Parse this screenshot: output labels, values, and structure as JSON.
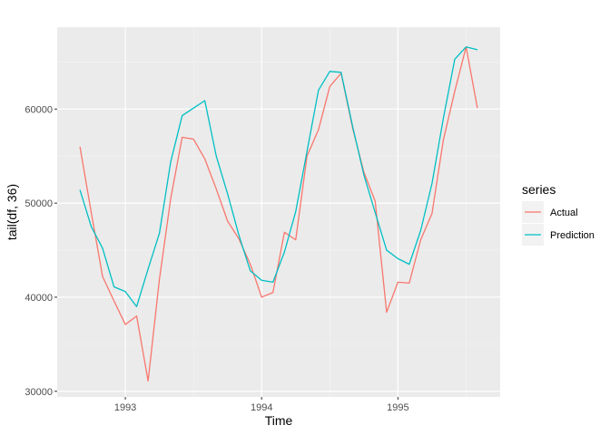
{
  "chart_data": {
    "type": "line",
    "xlabel": "Time",
    "ylabel": "tail(df, 36)",
    "x_ticks": [
      1993,
      1994,
      1995
    ],
    "y_ticks": [
      30000,
      40000,
      50000,
      60000
    ],
    "xlim": [
      1992.5,
      1995.75
    ],
    "ylim": [
      29400,
      68700
    ],
    "grid": true,
    "legend_title": "series",
    "legend_position": "right",
    "x": [
      1992.667,
      1992.75,
      1992.833,
      1992.917,
      1993.0,
      1993.083,
      1993.167,
      1993.25,
      1993.333,
      1993.417,
      1993.5,
      1993.583,
      1993.667,
      1993.75,
      1993.833,
      1993.917,
      1994.0,
      1994.083,
      1994.167,
      1994.25,
      1994.333,
      1994.417,
      1994.5,
      1994.583,
      1994.667,
      1994.75,
      1994.833,
      1994.917,
      1995.0,
      1995.083,
      1995.167,
      1995.25,
      1995.333,
      1995.417,
      1995.5,
      1995.583
    ],
    "series": [
      {
        "name": "Actual",
        "color": "#F8766D",
        "values": [
          56000,
          49000,
          42200,
          39600,
          37100,
          38000,
          31100,
          41900,
          50500,
          57000,
          56800,
          54700,
          51500,
          48100,
          46200,
          43500,
          40000,
          40500,
          46900,
          46100,
          55000,
          57800,
          62400,
          63800,
          58000,
          53300,
          50200,
          38400,
          41600,
          41500,
          46100,
          48900,
          56700,
          61900,
          66600,
          60100
        ]
      },
      {
        "name": "Prediction",
        "color": "#00BFC4",
        "values": [
          51400,
          47500,
          45200,
          41100,
          40600,
          39000,
          43000,
          46800,
          54400,
          59300,
          60100,
          60900,
          55000,
          51000,
          46600,
          42800,
          41800,
          41600,
          44800,
          49100,
          55500,
          62000,
          64000,
          63900,
          58200,
          53000,
          49000,
          45000,
          44100,
          43500,
          47100,
          52100,
          59000,
          65300,
          66600,
          66300
        ]
      }
    ]
  },
  "colors": {
    "panel_background": "#EBEBEB",
    "grid_major": "#FFFFFF",
    "grid_minor": "#F5F5F5"
  }
}
